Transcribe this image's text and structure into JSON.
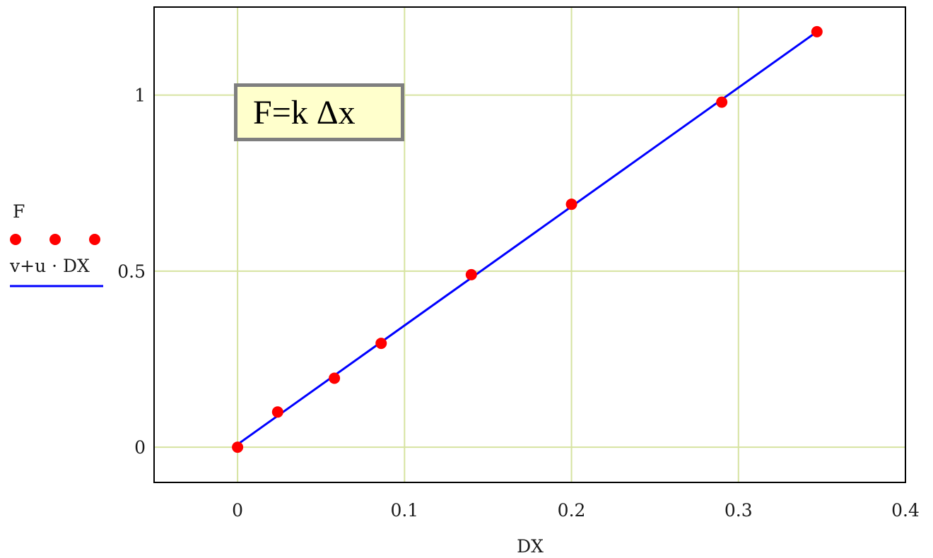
{
  "annotation": {
    "formula": "F=k Δx"
  },
  "legend": {
    "point_label": "F",
    "line_label": "v+u · DX",
    "point_color": "#ff0000",
    "line_color": "#0000ff"
  },
  "colors": {
    "grid": "#d6e3a0",
    "frame": "#000000"
  },
  "chart_data": {
    "type": "scatter",
    "xlabel": "DX",
    "ylabel": "",
    "xlim": [
      -0.05,
      0.4
    ],
    "ylim": [
      -0.1,
      1.25
    ],
    "xticks": [
      0,
      0.1,
      0.2,
      0.3,
      0.4
    ],
    "xtick_labels": [
      "0",
      "0.1",
      "0.2",
      "0.3",
      "0.4"
    ],
    "yticks": [
      0,
      0.5,
      1
    ],
    "ytick_labels": [
      "0",
      "0.5",
      "1"
    ],
    "grid": true,
    "series": [
      {
        "name": "F",
        "kind": "points",
        "x": [
          0,
          0.024,
          0.058,
          0.086,
          0.14,
          0.2,
          0.29,
          0.347
        ],
        "y": [
          0,
          0.1,
          0.196,
          0.295,
          0.49,
          0.69,
          0.98,
          1.18
        ]
      },
      {
        "name": "v+u · DX",
        "kind": "line",
        "x": [
          0,
          0.347
        ],
        "y": [
          0.008,
          1.18
        ]
      }
    ]
  }
}
